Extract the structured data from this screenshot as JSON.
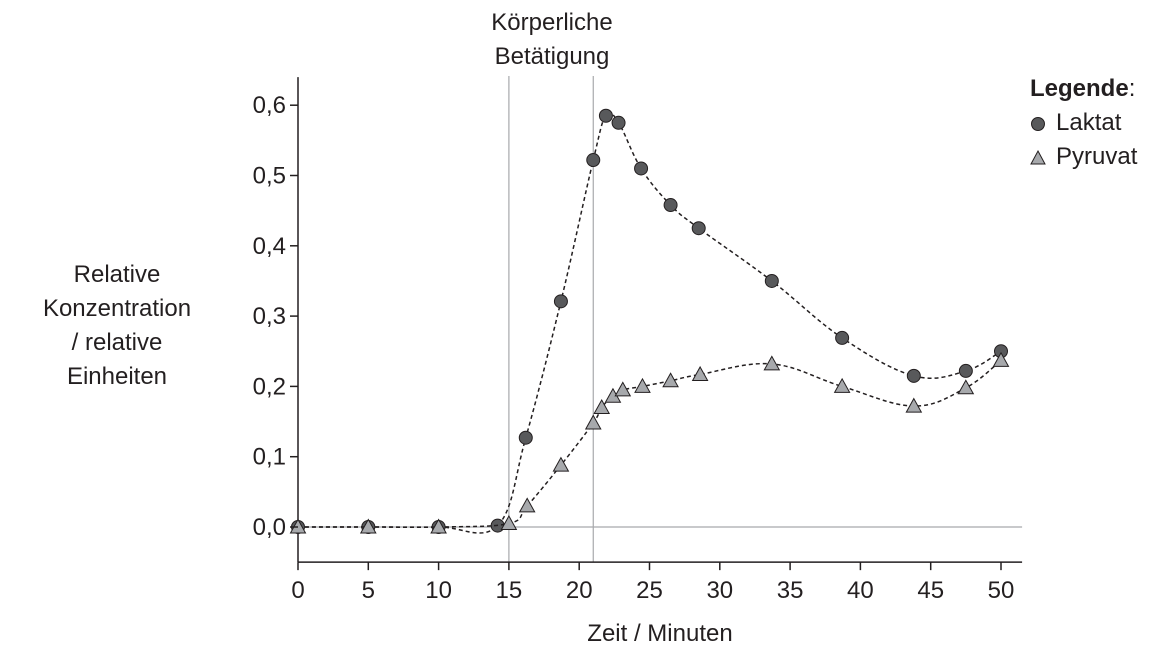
{
  "chart_data": {
    "type": "line",
    "xlabel": "Zeit / Minuten",
    "ylabel_lines": [
      "Relative",
      "Konzentration",
      "/ relative",
      "Einheiten"
    ],
    "xlim": [
      0,
      51.5
    ],
    "ylim": [
      -0.05,
      0.64
    ],
    "x_ticks": [
      0,
      5,
      10,
      15,
      20,
      25,
      30,
      35,
      40,
      45,
      50
    ],
    "x_tick_labels": [
      "0",
      "5",
      "10",
      "15",
      "20",
      "25",
      "30",
      "35",
      "40",
      "45",
      "50"
    ],
    "y_ticks": [
      0,
      0.1,
      0.2,
      0.3,
      0.4,
      0.5,
      0.6
    ],
    "y_tick_labels": [
      "0,0",
      "0,1",
      "0,2",
      "0,3",
      "0,4",
      "0,5",
      "0,6"
    ],
    "grid": false,
    "legend_placement": "right",
    "annotation": {
      "lines": [
        "Körperliche",
        "Betätigung"
      ],
      "x_start": 15,
      "x_end": 21
    },
    "legend": {
      "title": "Legende",
      "title_suffix": ":"
    },
    "series": [
      {
        "name": "Laktat",
        "marker": "circle",
        "color": "#58595b",
        "x": [
          0,
          5,
          10,
          14.2,
          16.2,
          18.7,
          21,
          21.9,
          22.8,
          24.4,
          26.5,
          28.5,
          33.7,
          38.7,
          43.8,
          47.5,
          50
        ],
        "y": [
          0,
          0,
          0,
          0.002,
          0.127,
          0.321,
          0.522,
          0.585,
          0.575,
          0.51,
          0.458,
          0.425,
          0.35,
          0.269,
          0.215,
          0.222,
          0.25
        ]
      },
      {
        "name": "Pyruvat",
        "marker": "triangle",
        "color": "#a7a9ac",
        "x": [
          0,
          5,
          10,
          15,
          16.3,
          18.7,
          21,
          21.6,
          22.4,
          23.1,
          24.5,
          26.5,
          28.6,
          33.7,
          38.7,
          43.8,
          47.5,
          50
        ],
        "y": [
          0,
          0,
          0,
          0.005,
          0.03,
          0.088,
          0.148,
          0.17,
          0.186,
          0.195,
          0.2,
          0.208,
          0.217,
          0.232,
          0.2,
          0.172,
          0.198,
          0.237
        ]
      }
    ]
  }
}
